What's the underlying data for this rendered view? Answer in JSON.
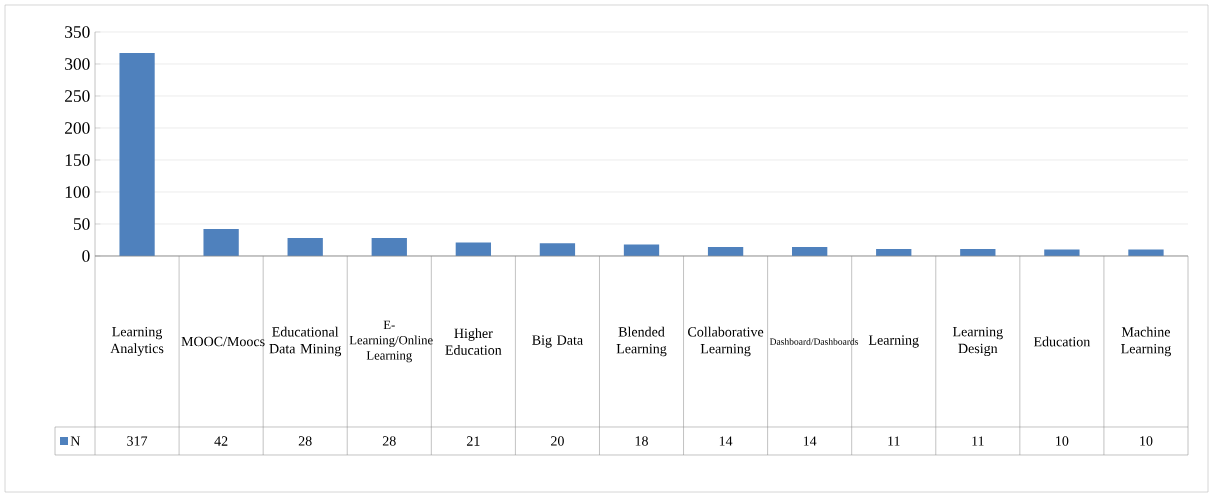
{
  "chart_data": {
    "type": "bar",
    "categories": [
      "Learning Analytics",
      "MOOC/Moocs",
      "Educational Data Mining",
      "E-Learning/Online Learning",
      "Higher Education",
      "Big Data",
      "Blended Learning",
      "Collaborative Learning",
      "Dashboard/Dashboards",
      "Learning",
      "Learning Design",
      "Education",
      "Machine Learning"
    ],
    "series": [
      {
        "name": "N",
        "color": "#4f81bd",
        "values": [
          317,
          42,
          28,
          28,
          21,
          20,
          18,
          14,
          14,
          11,
          11,
          10,
          10
        ]
      }
    ],
    "ylim": [
      0,
      350
    ],
    "yticks": [
      0,
      50,
      100,
      150,
      200,
      250,
      300,
      350
    ],
    "grid": "y",
    "data_labels": true,
    "legend": "bottom left"
  }
}
